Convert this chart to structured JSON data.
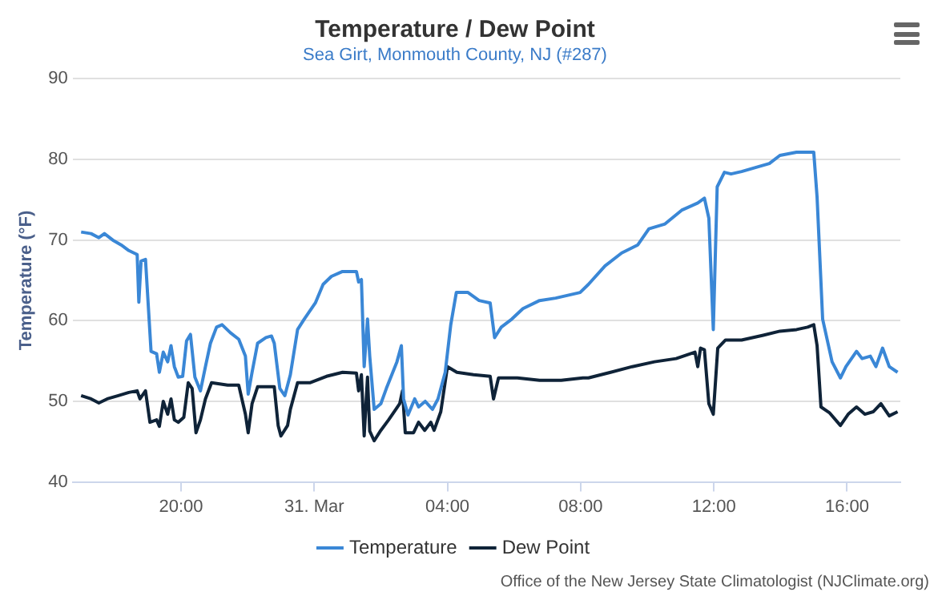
{
  "chart_data": {
    "type": "line",
    "title": "Temperature / Dew Point",
    "subtitle": "Sea Girt, Monmouth County, NJ (#287)",
    "ylabel": "Temperature (°F)",
    "annotations": [
      "Office of the New Jersey State Climatologist (NJClimate.org)"
    ],
    "xlim": [
      "--03-30T16:45",
      "--03-31T17:36"
    ],
    "xticks": [
      {
        "value": "--03-30T20:00",
        "label": "20:00"
      },
      {
        "value": "--03-31T00:00",
        "label": "31. Mar"
      },
      {
        "value": "--03-31T04:00",
        "label": "04:00"
      },
      {
        "value": "--03-31T08:00",
        "label": "08:00"
      },
      {
        "value": "--03-31T12:00",
        "label": "12:00"
      },
      {
        "value": "--03-31T16:00",
        "label": "16:00"
      }
    ],
    "ylim": [
      40,
      90
    ],
    "yticks": [
      40,
      50,
      60,
      70,
      80,
      90
    ],
    "grid": "y",
    "legend": "bottom",
    "marker": "none",
    "line_style": "solid",
    "series": [
      {
        "name": "Temperature",
        "color": "#3a87d6",
        "x": [
          "--03-30T17:00",
          "--03-30T17:18",
          "--03-30T17:32",
          "--03-30T17:42",
          "--03-30T17:57",
          "--03-30T18:12",
          "--03-30T18:26",
          "--03-30T18:41",
          "--03-30T18:44",
          "--03-30T18:48",
          "--03-30T18:56",
          "--03-30T19:06",
          "--03-30T19:16",
          "--03-30T19:21",
          "--03-30T19:28",
          "--03-30T19:36",
          "--03-30T19:42",
          "--03-30T19:48",
          "--03-30T19:55",
          "--03-30T20:03",
          "--03-30T20:10",
          "--03-30T20:17",
          "--03-30T20:25",
          "--03-30T20:35",
          "--03-30T20:44",
          "--03-30T20:53",
          "--03-30T21:04",
          "--03-30T21:14",
          "--03-30T21:29",
          "--03-30T21:44",
          "--03-30T21:56",
          "--03-30T22:01",
          "--03-30T22:08",
          "--03-30T22:18",
          "--03-30T22:33",
          "--03-30T22:43",
          "--03-30T22:48",
          "--03-30T22:58",
          "--03-30T23:07",
          "--03-30T23:17",
          "--03-30T23:30",
          "--03-30T23:42",
          "--03-31T00:02",
          "--03-31T00:16",
          "--03-31T00:31",
          "--03-31T00:51",
          "--03-31T01:16",
          "--03-31T01:20",
          "--03-31T01:25",
          "--03-31T01:30",
          "--03-31T01:36",
          "--03-31T01:40",
          "--03-31T01:48",
          "--03-31T02:00",
          "--03-31T02:10",
          "--03-31T02:29",
          "--03-31T02:37",
          "--03-31T02:41",
          "--03-31T02:49",
          "--03-31T03:01",
          "--03-31T03:08",
          "--03-31T03:20",
          "--03-31T03:33",
          "--03-31T03:43",
          "--03-31T03:56",
          "--03-31T04:06",
          "--03-31T04:16",
          "--03-31T04:37",
          "--03-31T04:57",
          "--03-31T05:17",
          "--03-31T05:25",
          "--03-31T05:37",
          "--03-31T05:56",
          "--03-31T06:16",
          "--03-31T06:46",
          "--03-31T07:15",
          "--03-31T07:59",
          "--03-31T08:14",
          "--03-31T08:44",
          "--03-31T09:14",
          "--03-31T09:43",
          "--03-31T10:03",
          "--03-31T10:32",
          "--03-31T11:02",
          "--03-31T11:31",
          "--03-31T11:43",
          "--03-31T11:51",
          "--03-31T11:59",
          "--03-31T12:06",
          "--03-31T12:19",
          "--03-31T12:31",
          "--03-31T12:50",
          "--03-31T13:10",
          "--03-31T13:40",
          "--03-31T13:59",
          "--03-31T14:29",
          "--03-31T15:00",
          "--03-31T15:06",
          "--03-31T15:16",
          "--03-31T15:33",
          "--03-31T15:48",
          "--03-31T15:58",
          "--03-31T16:17",
          "--03-31T16:27",
          "--03-31T16:42",
          "--03-31T16:52",
          "--03-31T17:04",
          "--03-31T17:16",
          "--03-31T17:31"
        ],
        "values": [
          71.0,
          70.8,
          70.3,
          70.8,
          70.0,
          69.4,
          68.7,
          68.2,
          62.3,
          67.4,
          67.6,
          56.2,
          55.9,
          53.6,
          56.1,
          54.9,
          56.9,
          54.3,
          53.0,
          53.1,
          57.5,
          58.3,
          53.0,
          51.3,
          54.3,
          57.2,
          59.2,
          59.5,
          58.5,
          57.7,
          55.6,
          50.9,
          53.6,
          57.2,
          57.9,
          58.1,
          57.2,
          51.6,
          50.7,
          53.3,
          58.9,
          60.2,
          62.2,
          64.5,
          65.5,
          66.1,
          66.1,
          64.8,
          65.1,
          54.3,
          60.2,
          55.6,
          49.0,
          49.7,
          51.6,
          54.9,
          56.9,
          50.3,
          48.3,
          50.3,
          49.3,
          50.0,
          49.0,
          50.3,
          53.6,
          59.5,
          63.5,
          63.5,
          62.5,
          62.2,
          57.9,
          59.2,
          60.2,
          61.5,
          62.5,
          62.8,
          63.5,
          64.5,
          66.8,
          68.4,
          69.4,
          71.4,
          72.0,
          73.7,
          74.6,
          75.2,
          72.7,
          58.9,
          76.6,
          78.4,
          78.2,
          78.5,
          78.9,
          79.5,
          80.5,
          80.9,
          80.9,
          75.3,
          60.2,
          54.9,
          52.9,
          54.3,
          56.2,
          55.3,
          55.6,
          54.3,
          56.6,
          54.3,
          53.6
        ]
      },
      {
        "name": "Dew Point",
        "color": "#0f2338",
        "x": [
          "--03-30T17:00",
          "--03-30T17:18",
          "--03-30T17:32",
          "--03-30T17:47",
          "--03-30T18:07",
          "--03-30T18:26",
          "--03-30T18:41",
          "--03-30T18:46",
          "--03-30T18:56",
          "--03-30T19:04",
          "--03-30T19:16",
          "--03-30T19:21",
          "--03-30T19:28",
          "--03-30T19:36",
          "--03-30T19:42",
          "--03-30T19:48",
          "--03-30T19:55",
          "--03-30T20:05",
          "--03-30T20:13",
          "--03-30T20:20",
          "--03-30T20:27",
          "--03-30T20:35",
          "--03-30T20:44",
          "--03-30T20:55",
          "--03-30T21:24",
          "--03-30T21:44",
          "--03-30T21:56",
          "--03-30T22:01",
          "--03-30T22:08",
          "--03-30T22:18",
          "--03-30T22:48",
          "--03-30T22:55",
          "--03-30T23:00",
          "--03-30T23:12",
          "--03-30T23:17",
          "--03-30T23:30",
          "--03-30T23:52",
          "--03-31T00:22",
          "--03-31T00:51",
          "--03-31T01:16",
          "--03-31T01:20",
          "--03-31T01:25",
          "--03-31T01:30",
          "--03-31T01:36",
          "--03-31T01:40",
          "--03-31T01:48",
          "--03-31T02:00",
          "--03-31T02:14",
          "--03-31T02:34",
          "--03-31T02:39",
          "--03-31T02:44",
          "--03-31T02:59",
          "--03-31T03:08",
          "--03-31T03:19",
          "--03-31T03:30",
          "--03-31T03:36",
          "--03-31T03:48",
          "--03-31T04:00",
          "--03-31T04:17",
          "--03-31T04:47",
          "--03-31T05:17",
          "--03-31T05:23",
          "--03-31T05:32",
          "--03-31T06:06",
          "--03-31T06:46",
          "--03-31T07:25",
          "--03-31T08:04",
          "--03-31T08:14",
          "--03-31T08:54",
          "--03-31T09:33",
          "--03-31T10:13",
          "--03-31T10:52",
          "--03-31T11:26",
          "--03-31T11:31",
          "--03-31T11:36",
          "--03-31T11:43",
          "--03-31T11:51",
          "--03-31T11:59",
          "--03-31T12:07",
          "--03-31T12:21",
          "--03-31T12:50",
          "--03-31T13:29",
          "--03-31T13:59",
          "--03-31T14:29",
          "--03-31T14:49",
          "--03-31T15:00",
          "--03-31T15:06",
          "--03-31T15:13",
          "--03-31T15:28",
          "--03-31T15:48",
          "--03-31T16:02",
          "--03-31T16:17",
          "--03-31T16:32",
          "--03-31T16:47",
          "--03-31T17:01",
          "--03-31T17:16",
          "--03-31T17:31"
        ],
        "values": [
          50.7,
          50.3,
          49.8,
          50.3,
          50.7,
          51.1,
          51.3,
          50.3,
          51.3,
          47.4,
          47.7,
          46.9,
          50.0,
          48.4,
          50.3,
          47.7,
          47.4,
          48.0,
          52.3,
          51.6,
          46.1,
          47.7,
          50.3,
          52.3,
          52.0,
          52.0,
          48.4,
          46.1,
          49.7,
          51.8,
          51.8,
          47.0,
          45.7,
          47.0,
          49.0,
          52.3,
          52.3,
          53.1,
          53.6,
          53.5,
          51.3,
          53.3,
          45.7,
          53.0,
          46.3,
          45.1,
          46.4,
          47.7,
          49.7,
          51.3,
          46.1,
          46.1,
          47.4,
          46.4,
          47.4,
          46.4,
          48.7,
          54.3,
          53.6,
          53.3,
          53.1,
          50.3,
          52.9,
          52.9,
          52.6,
          52.6,
          52.9,
          52.9,
          53.6,
          54.3,
          54.9,
          55.3,
          56.1,
          54.3,
          56.6,
          56.4,
          49.7,
          48.4,
          56.6,
          57.6,
          57.6,
          58.2,
          58.7,
          58.9,
          59.2,
          59.5,
          56.9,
          49.3,
          48.6,
          47.0,
          48.4,
          49.3,
          48.4,
          48.7,
          49.7,
          48.2,
          48.7
        ]
      }
    ]
  }
}
